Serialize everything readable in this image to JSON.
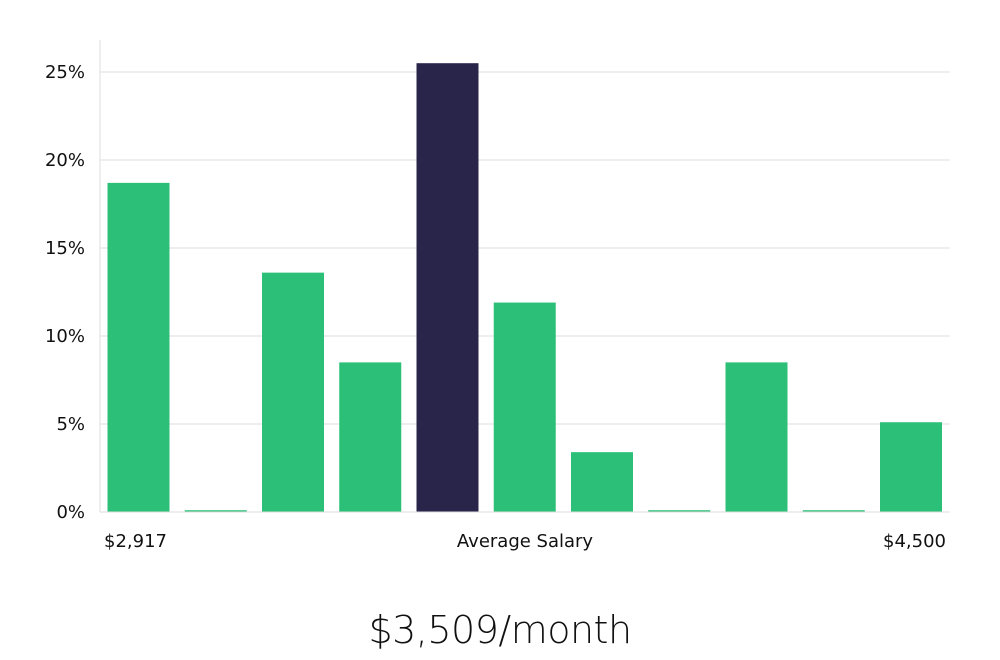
{
  "chart_data": {
    "type": "bar",
    "title": "",
    "xlabel": "Average Salary",
    "ylabel": "",
    "x_min_label": "$2,917",
    "x_max_label": "$4,500",
    "categories": [
      "1",
      "2",
      "3",
      "4",
      "5",
      "6",
      "7",
      "8",
      "9",
      "10",
      "11"
    ],
    "values": [
      18.7,
      0.1,
      13.6,
      8.5,
      25.5,
      11.9,
      3.4,
      0.1,
      8.5,
      0.1,
      5.1
    ],
    "highlight_index": 4,
    "ylim": [
      0,
      27
    ],
    "yticks": [
      0,
      5,
      10,
      15,
      20,
      25
    ],
    "ytick_labels": [
      "0%",
      "5%",
      "10%",
      "15%",
      "20%",
      "25%"
    ],
    "grid": true,
    "colors": {
      "bar": "#2bbf77",
      "highlight": "#28244a",
      "grid": "#dddddd"
    }
  },
  "summary": "$3,509/month"
}
